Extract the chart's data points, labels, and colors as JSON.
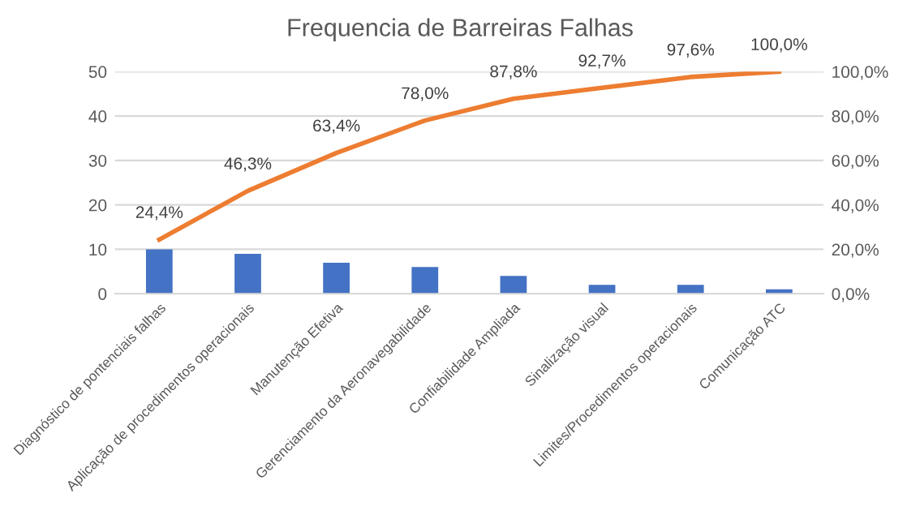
{
  "chart_data": {
    "type": "bar",
    "title": "Frequencia de Barreiras Falhas",
    "categories": [
      "Diagnóstico de pontenciais falhas",
      "Aplicação de procedimentos operacionais",
      "Manutenção Efetiva",
      "Gerenciamento da Aeronavegabilidade",
      "Confiabilidade Ampliada",
      "Sinalização visual",
      "Limites/Procedimentos operacionais",
      "Comunicação ATC"
    ],
    "series": [
      {
        "color": "#4472c4",
        "values": [
          10,
          9,
          7,
          6,
          4,
          2,
          2,
          1
        ]
      },
      {
        "type": "line",
        "axis": "y2",
        "color": "#ed7d31",
        "values": [
          24.4,
          46.3,
          63.4,
          78.0,
          87.8,
          92.7,
          97.6,
          100.0
        ],
        "value_labels": [
          "24,4%",
          "46,3%",
          "63,4%",
          "78,0%",
          "87,8%",
          "92,7%",
          "97,6%",
          "100,0%"
        ]
      }
    ],
    "ylim": [
      0,
      50
    ],
    "yticks": [
      0,
      10,
      20,
      30,
      40,
      50
    ],
    "y2lim": [
      0,
      100
    ],
    "y2ticks": [
      {
        "value": 0,
        "label": "0,0%"
      },
      {
        "value": 20,
        "label": "20,0%"
      },
      {
        "value": 40,
        "label": "40,0%"
      },
      {
        "value": 60,
        "label": "60,0%"
      },
      {
        "value": 80,
        "label": "80,0%"
      },
      {
        "value": 100,
        "label": "100,0%"
      }
    ],
    "grid": "y",
    "marker": "none",
    "line_style": "solid"
  }
}
